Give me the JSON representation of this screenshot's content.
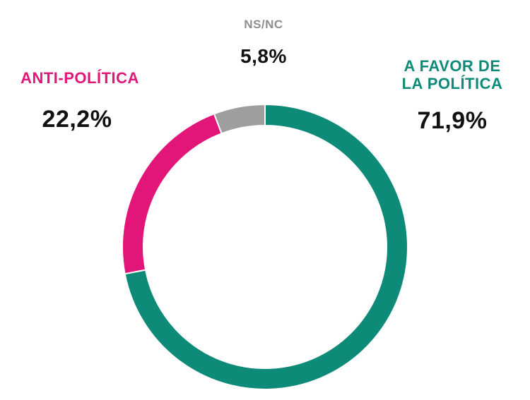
{
  "chart_data": {
    "type": "pie",
    "title": "",
    "categories": [
      "A FAVOR DE LA POLÍTICA",
      "ANTI-POLÍTICA",
      "NS/NC"
    ],
    "values": [
      71.9,
      22.2,
      5.8
    ],
    "value_labels": [
      "71,9%",
      "22,2%",
      "5,8%"
    ],
    "colors": [
      "#0E8A78",
      "#E21579",
      "#9E9E9E"
    ],
    "direction": "clockwise-from-top",
    "donut": true
  },
  "labels": {
    "favor": {
      "category": "A FAVOR DE\nLA POLÍTICA",
      "value": "71,9%"
    },
    "anti": {
      "category": "ANTI-POLÍTICA",
      "value": "22,2%"
    },
    "nsnc": {
      "category": "NS/NC",
      "value": "5,8%"
    }
  }
}
